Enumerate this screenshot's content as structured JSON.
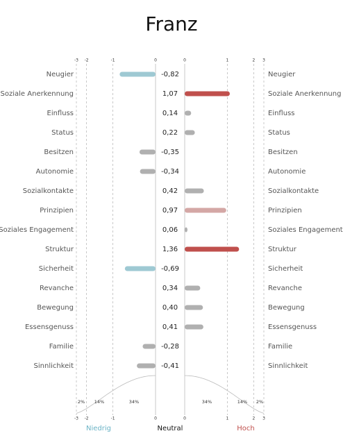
{
  "chart_data": {
    "type": "diverging_bar",
    "title": "Franz",
    "categories": [
      "Neugier",
      "Soziale Anerkennung",
      "Einfluss",
      "Status",
      "Besitzen",
      "Autonomie",
      "Sozialkontakte",
      "Prinzipien",
      "Soziales Engagement",
      "Struktur",
      "Sicherheit",
      "Revanche",
      "Bewegung",
      "Essensgenuss",
      "Familie",
      "Sinnlichkeit"
    ],
    "values": [
      -0.82,
      1.07,
      0.14,
      0.22,
      -0.35,
      -0.34,
      0.42,
      0.97,
      0.06,
      1.36,
      -0.69,
      0.34,
      0.4,
      0.41,
      -0.28,
      -0.41
    ],
    "value_labels": [
      "-0,82",
      "1,07",
      "0,14",
      "0,22",
      "-0,35",
      "-0,34",
      "0,42",
      "0,97",
      "0,06",
      "1,36",
      "-0,69",
      "0,34",
      "0,40",
      "0,41",
      "-0,28",
      "-0,41"
    ],
    "colors": [
      "#9ec9d3",
      "#c0504d",
      "#b0b0b0",
      "#b0b0b0",
      "#b0b0b0",
      "#b0b0b0",
      "#b0b0b0",
      "#d4a7a5",
      "#b0b0b0",
      "#c0504d",
      "#9ec9d3",
      "#b0b0b0",
      "#b0b0b0",
      "#b0b0b0",
      "#b0b0b0",
      "#b0b0b0"
    ],
    "xlim": [
      -3,
      0
    ],
    "xticks": [
      -3,
      -2,
      -1,
      0
    ],
    "x2lim": [
      0,
      3
    ],
    "x2ticks": [
      0,
      1,
      2,
      3
    ],
    "left_percentages": [
      "2%",
      "14%",
      "34%"
    ],
    "right_percentages": [
      "34%",
      "14%",
      "2%"
    ],
    "low_label": "Niedrig",
    "neutral_label": "Neutral",
    "high_label": "Hoch"
  }
}
